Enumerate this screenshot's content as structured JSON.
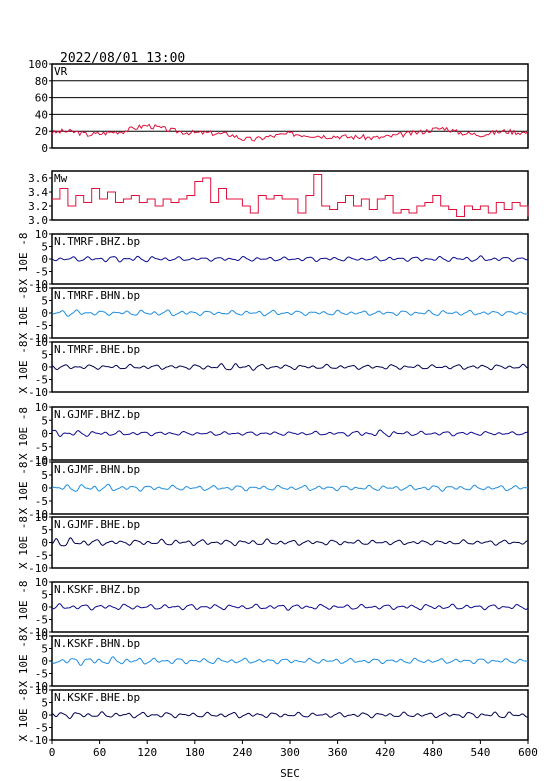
{
  "title": "2022/08/01 13:00",
  "xlabel": "SEC",
  "ylabel": "X 10E -8",
  "chart_data": {
    "type": "line",
    "title": "2022/08/01 13:00",
    "xlabel": "SEC",
    "xlim": [
      0,
      600
    ],
    "xticks": [
      0,
      60,
      120,
      180,
      240,
      300,
      360,
      420,
      480,
      540,
      600
    ],
    "ylabel": "X 10E -8",
    "panels": [
      {
        "label": "VR",
        "kind": "vr",
        "color": "#e0103c",
        "ylim": [
          0,
          100
        ],
        "yticks": [
          0,
          20,
          40,
          60,
          80,
          100
        ],
        "grid": true,
        "x": [
          0,
          15,
          30,
          45,
          60,
          75,
          90,
          105,
          120,
          135,
          150,
          165,
          180,
          195,
          210,
          225,
          240,
          255,
          270,
          285,
          300,
          315,
          330,
          345,
          360,
          375,
          390,
          405,
          420,
          435,
          450,
          465,
          480,
          495,
          510,
          525,
          540,
          555,
          570,
          585,
          600
        ],
        "values": [
          18,
          20,
          19,
          16,
          17,
          19,
          20,
          24,
          27,
          24,
          21,
          19,
          18,
          18,
          17,
          16,
          11,
          10,
          13,
          15,
          17,
          16,
          15,
          14,
          14,
          13,
          13,
          12,
          13,
          15,
          17,
          19,
          22,
          24,
          19,
          17,
          16,
          18,
          20,
          19,
          18
        ]
      },
      {
        "label": "Mw",
        "kind": "mw",
        "color": "#e0103c",
        "ylim": [
          3.0,
          3.7
        ],
        "yticks": [
          3.0,
          3.2,
          3.4,
          3.6
        ],
        "grid": false,
        "x": [
          0,
          10,
          20,
          30,
          40,
          50,
          60,
          70,
          80,
          90,
          100,
          110,
          120,
          130,
          140,
          150,
          160,
          170,
          180,
          190,
          200,
          210,
          220,
          230,
          240,
          250,
          260,
          270,
          280,
          290,
          300,
          310,
          320,
          330,
          340,
          350,
          360,
          370,
          380,
          390,
          400,
          410,
          420,
          430,
          440,
          450,
          460,
          470,
          480,
          490,
          500,
          510,
          520,
          530,
          540,
          550,
          560,
          570,
          580,
          590,
          600
        ],
        "values": [
          3.3,
          3.45,
          3.2,
          3.35,
          3.25,
          3.45,
          3.3,
          3.4,
          3.25,
          3.3,
          3.35,
          3.25,
          3.3,
          3.2,
          3.3,
          3.25,
          3.3,
          3.35,
          3.55,
          3.6,
          3.25,
          3.45,
          3.3,
          3.3,
          3.2,
          3.1,
          3.35,
          3.3,
          3.35,
          3.3,
          3.3,
          3.1,
          3.35,
          3.65,
          3.2,
          3.15,
          3.25,
          3.35,
          3.2,
          3.3,
          3.15,
          3.3,
          3.35,
          3.1,
          3.15,
          3.1,
          3.2,
          3.25,
          3.35,
          3.2,
          3.15,
          3.05,
          3.2,
          3.15,
          3.2,
          3.1,
          3.25,
          3.15,
          3.25,
          3.2,
          3.05
        ]
      },
      {
        "label": "N.TMRF.BHZ.bp",
        "kind": "wave",
        "color": "#0a0a8c",
        "ylim": [
          -10,
          10
        ],
        "yticks": [
          -10,
          -5,
          0,
          5,
          10
        ],
        "amp_profile": [
          0.9,
          1.0,
          1.1,
          1.4,
          1.2,
          0.9,
          0.8,
          0.8,
          1.0,
          0.9,
          0.8,
          1.0,
          0.9,
          0.8,
          1.0,
          0.9,
          1.1,
          1.0,
          1.2,
          1.0,
          0.7
        ]
      },
      {
        "label": "N.TMRF.BHN.bp",
        "kind": "wave",
        "color": "#1e8ee0",
        "ylim": [
          -10,
          10
        ],
        "yticks": [
          -10,
          -5,
          0,
          5,
          10
        ],
        "amp_profile": [
          1.2,
          1.4,
          0.9,
          1.0,
          1.2,
          1.3,
          1.0,
          0.9,
          1.0,
          1.2,
          1.0,
          0.9,
          1.1,
          0.9,
          1.1,
          1.0,
          1.2,
          1.0,
          1.1,
          0.9,
          1.0
        ]
      },
      {
        "label": "N.TMRF.BHE.bp",
        "kind": "wave",
        "color": "#000050",
        "ylim": [
          -10,
          10
        ],
        "yticks": [
          -10,
          -5,
          0,
          5,
          10
        ],
        "amp_profile": [
          1.0,
          1.0,
          0.9,
          1.0,
          1.0,
          0.9,
          1.0,
          1.3,
          1.8,
          1.0,
          1.0,
          0.9,
          1.0,
          0.9,
          1.0,
          1.0,
          0.9,
          1.0,
          1.1,
          1.0,
          1.0
        ]
      },
      {
        "label": "N.GJMF.BHZ.bp",
        "kind": "wave",
        "color": "#0a0a8c",
        "ylim": [
          -10,
          10
        ],
        "yticks": [
          -10,
          -5,
          0,
          5,
          10
        ],
        "amp_profile": [
          1.6,
          1.2,
          1.0,
          0.9,
          0.8,
          0.8,
          0.7,
          0.8,
          0.7,
          0.8,
          0.7,
          0.8,
          0.7,
          1.2,
          1.4,
          0.9,
          0.8,
          0.9,
          0.8,
          0.7,
          0.6
        ]
      },
      {
        "label": "N.GJMF.BHN.bp",
        "kind": "wave",
        "color": "#1e8ee0",
        "ylim": [
          -10,
          10
        ],
        "yticks": [
          -10,
          -5,
          0,
          5,
          10
        ],
        "amp_profile": [
          1.3,
          1.5,
          1.6,
          1.2,
          1.1,
          1.0,
          1.0,
          1.0,
          1.1,
          1.0,
          1.0,
          1.1,
          1.0,
          1.0,
          1.1,
          1.0,
          1.2,
          1.1,
          1.0,
          1.1,
          1.0
        ]
      },
      {
        "label": "N.GJMF.BHE.bp",
        "kind": "wave",
        "color": "#000050",
        "ylim": [
          -10,
          10
        ],
        "yticks": [
          -10,
          -5,
          0,
          5,
          10
        ],
        "amp_profile": [
          2.0,
          1.8,
          1.2,
          1.0,
          1.2,
          1.3,
          1.2,
          1.1,
          1.2,
          1.3,
          1.1,
          1.0,
          1.1,
          1.0,
          1.0,
          1.0,
          0.9,
          1.0,
          0.9,
          1.1,
          0.8
        ]
      },
      {
        "label": "N.KSKF.BHZ.bp",
        "kind": "wave",
        "color": "#0a0a8c",
        "ylim": [
          -10,
          10
        ],
        "yticks": [
          -10,
          -5,
          0,
          5,
          10
        ],
        "amp_profile": [
          1.3,
          1.2,
          1.1,
          1.2,
          1.0,
          1.1,
          1.2,
          1.1,
          1.0,
          1.1,
          1.2,
          1.1,
          1.0,
          1.1,
          1.0,
          1.1,
          1.2,
          1.1,
          1.0,
          1.1,
          1.0
        ]
      },
      {
        "label": "N.KSKF.BHN.bp",
        "kind": "wave",
        "color": "#1e8ee0",
        "ylim": [
          -10,
          10
        ],
        "yticks": [
          -10,
          -5,
          0,
          5,
          10
        ],
        "amp_profile": [
          1.4,
          1.6,
          1.7,
          1.5,
          1.3,
          1.2,
          1.1,
          1.2,
          1.1,
          1.0,
          1.1,
          1.0,
          1.1,
          1.0,
          1.0,
          1.1,
          1.0,
          1.0,
          1.1,
          1.0,
          0.9
        ]
      },
      {
        "label": "N.KSKF.BHE.bp",
        "kind": "wave",
        "color": "#000050",
        "ylim": [
          -10,
          10
        ],
        "yticks": [
          -10,
          -5,
          0,
          5,
          10
        ],
        "amp_profile": [
          1.5,
          1.3,
          1.2,
          1.1,
          1.2,
          1.1,
          1.0,
          1.1,
          1.2,
          1.0,
          1.1,
          1.0,
          1.0,
          1.1,
          1.0,
          1.1,
          1.0,
          1.1,
          1.3,
          1.4,
          1.0
        ]
      }
    ]
  }
}
